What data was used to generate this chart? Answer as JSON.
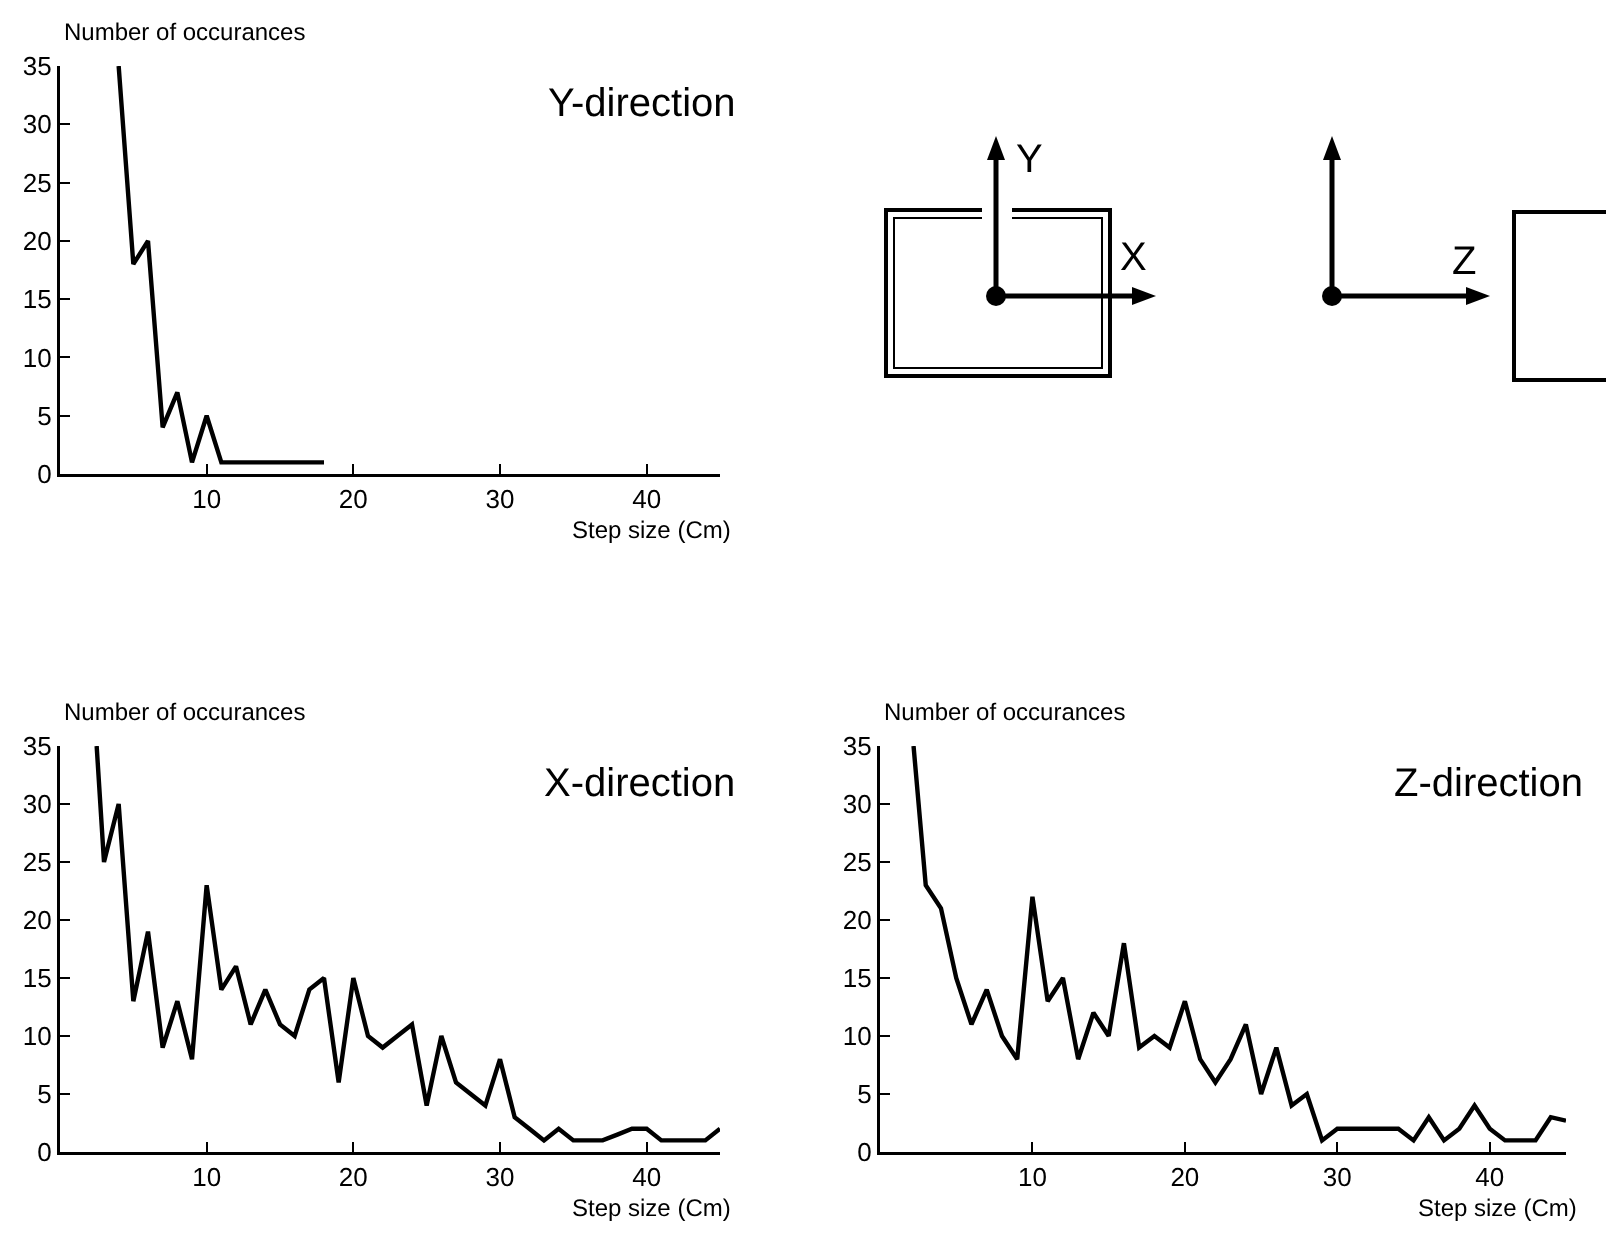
{
  "chart_data": [
    {
      "type": "line",
      "title": "Y-direction",
      "xlabel": "Step size (Cm)",
      "ylabel": "Number of occurances",
      "xlim": [
        0,
        45
      ],
      "ylim": [
        0,
        35
      ],
      "xticks": [
        10,
        20,
        30,
        40
      ],
      "yticks": [
        0,
        5,
        10,
        15,
        20,
        25,
        30,
        35
      ],
      "grid": false,
      "marker": "none",
      "line_style": "solid",
      "series": [
        {
          "color": "#000000",
          "x": [
            4,
            5,
            6,
            7,
            8,
            9,
            10,
            11,
            12,
            13,
            14,
            15,
            16,
            17,
            18
          ],
          "values": [
            35,
            18,
            20,
            4,
            7,
            1,
            5,
            1,
            1,
            1,
            1,
            1,
            1,
            1,
            1
          ]
        }
      ]
    },
    {
      "type": "other",
      "annotations": [
        "Y",
        "X",
        "Z"
      ]
    },
    {
      "type": "line",
      "title": "X-direction",
      "xlabel": "Step size (Cm)",
      "ylabel": "Number of occurances",
      "xlim": [
        0,
        45
      ],
      "ylim": [
        0,
        35
      ],
      "xticks": [
        10,
        20,
        30,
        40
      ],
      "yticks": [
        0,
        5,
        10,
        15,
        20,
        25,
        30,
        35
      ],
      "grid": false,
      "marker": "none",
      "line_style": "solid",
      "series": [
        {
          "color": "#000000",
          "x": [
            2.5,
            3,
            4,
            5,
            6,
            7,
            8,
            9,
            10,
            11,
            12,
            13,
            14,
            15,
            16,
            17,
            18,
            19,
            20,
            21,
            22,
            23,
            24,
            25,
            26,
            27,
            28,
            29,
            30,
            31,
            32,
            33,
            34,
            35,
            36,
            37,
            38,
            39,
            40,
            41,
            42,
            43,
            44,
            45
          ],
          "values": [
            35,
            25,
            30,
            13,
            19,
            9,
            13,
            8,
            23,
            14,
            16,
            11,
            14,
            11,
            10,
            14,
            15,
            6,
            15,
            10,
            9,
            10,
            11,
            4,
            10,
            6,
            5,
            4,
            8,
            3,
            2,
            1,
            2,
            1,
            1,
            1,
            1.5,
            2,
            2,
            1,
            1,
            1,
            1,
            2
          ]
        }
      ]
    },
    {
      "type": "line",
      "title": "Z-direction",
      "xlabel": "Step size (Cm)",
      "ylabel": "Number of occurances",
      "xlim": [
        0,
        45
      ],
      "ylim": [
        0,
        35
      ],
      "xticks": [
        10,
        20,
        30,
        40
      ],
      "yticks": [
        0,
        5,
        10,
        15,
        20,
        25,
        30,
        35
      ],
      "grid": false,
      "marker": "none",
      "line_style": "solid",
      "series": [
        {
          "color": "#000000",
          "x": [
            2.2,
            3,
            4,
            5,
            6,
            7,
            8,
            9,
            10,
            11,
            12,
            13,
            14,
            15,
            16,
            17,
            18,
            19,
            20,
            21,
            22,
            23,
            24,
            25,
            26,
            27,
            28,
            29,
            30,
            31,
            32,
            33,
            34,
            35,
            36,
            37,
            38,
            39,
            40,
            41,
            42,
            43,
            44,
            45
          ],
          "values": [
            35,
            23,
            21,
            15,
            11,
            14,
            10,
            8,
            22,
            13,
            15,
            8,
            12,
            10,
            18,
            9,
            10,
            9,
            13,
            8,
            6,
            8,
            11,
            5,
            9,
            4,
            5,
            1,
            2,
            2,
            2,
            2,
            2,
            1,
            3,
            1,
            2,
            4,
            2,
            1,
            1,
            1,
            3,
            2.7
          ]
        }
      ]
    }
  ]
}
